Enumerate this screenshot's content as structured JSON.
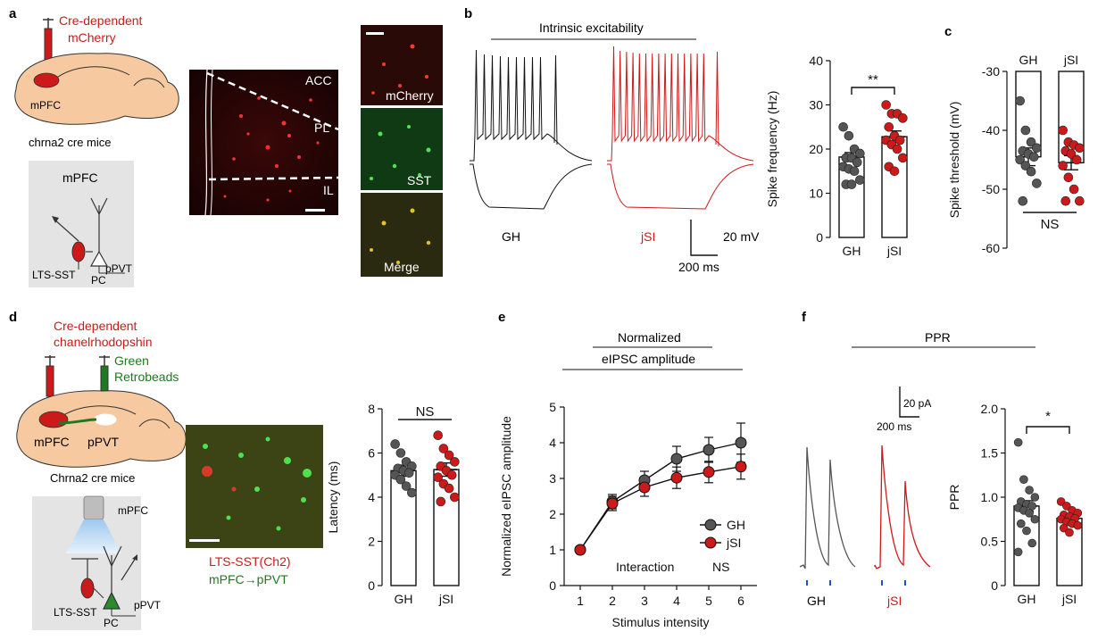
{
  "panel_labels": {
    "a": "a",
    "b": "b",
    "c": "c",
    "d": "d",
    "e": "e",
    "f": "f"
  },
  "panel_a": {
    "injection_label_1": "Cre-dependent",
    "injection_label_2": "mCherry",
    "region_label": "mPFC",
    "mouse_label": "chrna2 cre mice",
    "circuit_title": "mPFC",
    "circuit_cell_1": "LTS-SST",
    "circuit_cell_2": "PC",
    "circuit_target": "pPVT",
    "micro_labels": {
      "acc": "ACC",
      "pl": "PL",
      "il": "IL"
    },
    "stain_labels": {
      "mcherry": "mCherry",
      "sst": "SST",
      "merge": "Merge"
    }
  },
  "panel_b": {
    "title": "Intrinsic excitability",
    "trace_gh": "GH",
    "trace_jsi": "jSI",
    "scale_v": "20 mV",
    "scale_t": "200 ms"
  },
  "colors": {
    "gh": "#555555",
    "jsi": "#cc1a1a",
    "red_text": "#cc1a1a",
    "green_text": "#1e7a1e",
    "blue_stim": "#1f4fd6"
  },
  "panel_d": {
    "injection_label_1": "Cre-dependent",
    "injection_label_2": "chanelrhodopshin",
    "beads_label_1": "Green",
    "beads_label_2": "Retrobeads",
    "region_1": "mPFC",
    "region_2": "pPVT",
    "mouse_label": "Chrna2 cre mice",
    "circuit_title": "mPFC",
    "circuit_cell_1": "LTS-SST",
    "circuit_cell_2": "PC",
    "circuit_target": "pPVT",
    "micro_caption_1": "LTS-SST(Ch2)",
    "micro_caption_2": "mPFC→pPVT"
  },
  "panel_e_header": {
    "line1": "Normalized",
    "line2": "eIPSC amplitude"
  },
  "panel_f": {
    "title": "PPR",
    "scale_i": "20 pA",
    "scale_t": "200 ms",
    "trace_gh": "GH",
    "trace_jsi": "jSI"
  },
  "chart_data": [
    {
      "id": "spike_frequency",
      "type": "bar",
      "categories": [
        "GH",
        "jSI"
      ],
      "values": [
        18.2,
        22.8
      ],
      "errors": [
        1.0,
        1.3
      ],
      "points": [
        [
          25,
          23,
          20,
          19,
          18,
          18,
          17,
          16,
          15.5,
          15,
          13,
          12,
          12
        ],
        [
          30,
          28,
          28,
          27,
          25,
          23,
          22,
          22,
          21,
          20,
          18,
          16,
          15
        ]
      ],
      "ylabel": "Spike frequency (Hz)",
      "xlabel": "",
      "ylim": [
        0,
        40
      ],
      "yticks": [
        0,
        10,
        20,
        30,
        40
      ],
      "annotation": "**"
    },
    {
      "id": "spike_threshold",
      "type": "bar",
      "categories": [
        "GH",
        "jSI"
      ],
      "values": [
        -44.5,
        -45.5
      ],
      "errors": [
        1.5,
        1.2
      ],
      "points": [
        [
          -35,
          -40,
          -42,
          -43,
          -43.5,
          -44,
          -44.5,
          -45,
          -46,
          -47,
          -49,
          -52
        ],
        [
          -40,
          -42,
          -42.5,
          -43,
          -43.5,
          -44,
          -45,
          -46,
          -48,
          -50,
          -52,
          -52
        ]
      ],
      "ylabel": "Spike threshold (mV)",
      "xlabel": "",
      "ylim": [
        -60,
        -30
      ],
      "yticks": [
        -60,
        -50,
        -40,
        -30
      ],
      "annotation": "NS",
      "inverted": true
    },
    {
      "id": "latency",
      "type": "bar",
      "categories": [
        "GH",
        "jSI"
      ],
      "values": [
        5.2,
        5.25
      ],
      "errors": [
        0.25,
        0.3
      ],
      "points": [
        [
          6.4,
          6.0,
          5.6,
          5.4,
          5.3,
          5.2,
          5.1,
          5.0,
          4.8,
          4.5,
          4.2
        ],
        [
          6.8,
          6.2,
          5.9,
          5.6,
          5.4,
          5.2,
          5.0,
          4.9,
          4.6,
          4.4,
          4.0,
          3.8
        ]
      ],
      "ylabel": "Latency (ms)",
      "xlabel": "",
      "ylim": [
        0,
        8
      ],
      "yticks": [
        0,
        2,
        4,
        6,
        8
      ],
      "annotation": "NS"
    },
    {
      "id": "eipsc",
      "type": "line",
      "x": [
        1,
        2,
        3,
        4,
        5,
        6
      ],
      "series": [
        {
          "name": "GH",
          "values": [
            1.0,
            2.35,
            2.95,
            3.55,
            3.8,
            4.0
          ],
          "errors": [
            0,
            0.2,
            0.25,
            0.35,
            0.35,
            0.55
          ]
        },
        {
          "name": "jSI",
          "values": [
            1.0,
            2.3,
            2.75,
            3.02,
            3.18,
            3.33
          ],
          "errors": [
            0,
            0.2,
            0.25,
            0.3,
            0.3,
            0.35
          ]
        }
      ],
      "xlabel": "Stimulus intensity",
      "ylabel": "Normalized eIPSC amplitude",
      "xlim": [
        0.5,
        6.5
      ],
      "ylim": [
        0,
        5
      ],
      "xticks": [
        1,
        2,
        3,
        4,
        5,
        6
      ],
      "yticks": [
        0,
        1,
        2,
        3,
        4,
        5
      ],
      "legend": "bottom-right",
      "annotation_1": "Interaction",
      "annotation_2": "NS"
    },
    {
      "id": "ppr",
      "type": "bar",
      "categories": [
        "GH",
        "jSI"
      ],
      "values": [
        0.9,
        0.76
      ],
      "errors": [
        0.06,
        0.03
      ],
      "points": [
        [
          1.62,
          1.2,
          1.08,
          1.0,
          0.95,
          0.92,
          0.9,
          0.88,
          0.85,
          0.82,
          0.75,
          0.7,
          0.62,
          0.48,
          0.38
        ],
        [
          0.95,
          0.9,
          0.85,
          0.82,
          0.8,
          0.78,
          0.76,
          0.75,
          0.72,
          0.7,
          0.68,
          0.65,
          0.6
        ]
      ],
      "ylabel": "PPR",
      "xlabel": "",
      "ylim": [
        0,
        2.0
      ],
      "yticks": [
        0,
        0.5,
        1.0,
        1.5,
        2.0
      ],
      "yticklabels": [
        "0",
        "0.5",
        "1.0",
        "1.5",
        "2.0"
      ],
      "annotation": "*"
    }
  ]
}
